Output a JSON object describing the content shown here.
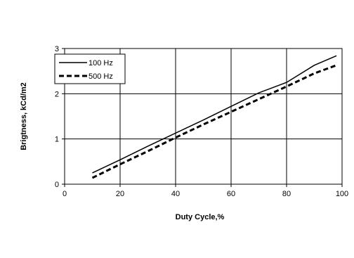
{
  "chart_data": {
    "type": "line",
    "title": "",
    "xlabel": "Duty Cycle,%",
    "ylabel": "Brigtness, kCd/m2",
    "xlim": [
      0,
      100
    ],
    "ylim": [
      0,
      3
    ],
    "xticks": [
      "0",
      "20",
      "40",
      "60",
      "80",
      "100"
    ],
    "yticks": [
      "0",
      "1",
      "2",
      "3"
    ],
    "grid": true,
    "legend_position": "top-left",
    "series": [
      {
        "name": "100 Hz",
        "style": "solid",
        "color": "#000000",
        "x": [
          10,
          20,
          30,
          40,
          50,
          60,
          70,
          80,
          90,
          98
        ],
        "y": [
          0.25,
          0.54,
          0.84,
          1.13,
          1.42,
          1.72,
          2.02,
          2.25,
          2.63,
          2.84
        ]
      },
      {
        "name": "500 Hz",
        "style": "dashed",
        "color": "#000000",
        "x": [
          10,
          20,
          30,
          40,
          50,
          60,
          70,
          80,
          90,
          98
        ],
        "y": [
          0.14,
          0.44,
          0.73,
          1.03,
          1.32,
          1.6,
          1.88,
          2.16,
          2.45,
          2.63
        ]
      }
    ]
  }
}
